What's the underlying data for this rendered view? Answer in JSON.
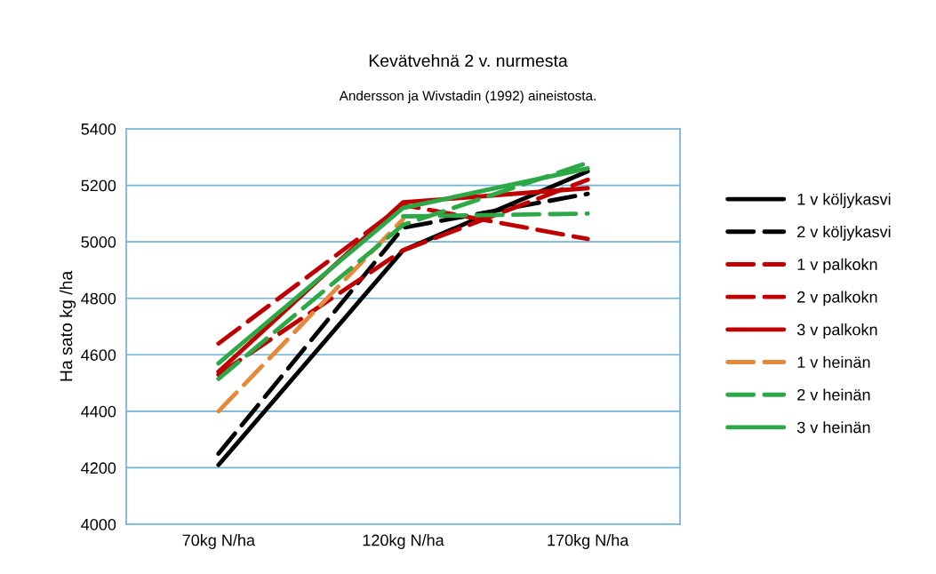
{
  "chart_data": {
    "type": "line",
    "title": "Kevätvehnä 2 v. nurmesta",
    "subtitle": "Andersson ja Wivstadin (1992) aineistosta.",
    "ylabel": "Ha sato kg /ha",
    "categories": [
      "70kg N/ha",
      "120kg N/ha",
      "170kg N/ha"
    ],
    "series": [
      {
        "name": "1 v köljykasvi",
        "color": "#000000",
        "line_style": "solid",
        "values": [
          4210,
          4970,
          5250
        ]
      },
      {
        "name": "2 v köljykasvi",
        "color": "#000000",
        "line_style": "dashed",
        "values": [
          4250,
          5050,
          5170
        ]
      },
      {
        "name": "1 v palkokn",
        "color": "#c00000",
        "line_style": "dashed",
        "values": [
          4640,
          5130,
          5010
        ]
      },
      {
        "name": "2 v palkokn",
        "color": "#c00000",
        "line_style": "dashed",
        "values": [
          4530,
          4970,
          5220
        ]
      },
      {
        "name": "3 v palkokn",
        "color": "#c00000",
        "line_style": "solid",
        "values": [
          4540,
          5140,
          5190
        ]
      },
      {
        "name": "1 v heinän",
        "color": "#e58a3c",
        "line_style": "dashed",
        "values": [
          4400,
          5080,
          null
        ]
      },
      {
        "name": "2 v heinän",
        "color": "#2ca847",
        "line_style": "dashed",
        "values": [
          4515,
          5060,
          5280
        ]
      },
      {
        "name": "3 v heinän",
        "color": "#2ca847",
        "line_style": "solid",
        "values": [
          4570,
          5120,
          5260
        ]
      },
      {
        "color": "#2ca847",
        "line_style": "dashed",
        "values": [
          null,
          5090,
          5100
        ]
      }
    ],
    "ylim": [
      4000,
      5400
    ],
    "yticks": [
      4000,
      4200,
      4400,
      4600,
      4800,
      5000,
      5200,
      5400
    ],
    "grid": "y",
    "legend": "right",
    "marker": "none"
  }
}
